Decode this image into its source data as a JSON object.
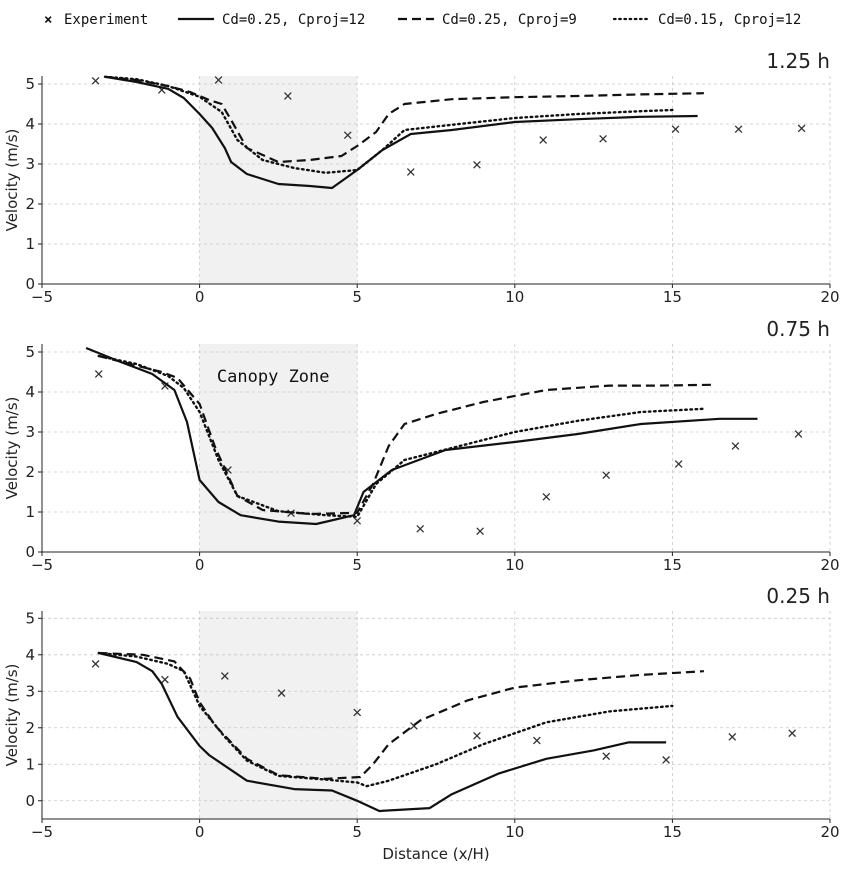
{
  "chart_data": [
    {
      "type": "line",
      "title": "1.25 h",
      "xlabel": "",
      "ylabel": "Velocity (m/s)",
      "xlim": [
        -5,
        20
      ],
      "ylim": [
        0,
        5.2
      ],
      "xticks": [
        -5,
        0,
        5,
        10,
        15,
        20
      ],
      "yticks": [
        0,
        1,
        2,
        3,
        4,
        5
      ],
      "grid": true,
      "shaded_region": {
        "x0": 0,
        "x1": 5
      },
      "series": [
        {
          "name": "Experiment",
          "style": "marker-x",
          "x": [
            -3.3,
            -1.2,
            0.6,
            2.8,
            4.7,
            6.7,
            8.8,
            10.9,
            12.8,
            15.1,
            17.1,
            19.1
          ],
          "y": [
            5.08,
            4.85,
            5.1,
            4.7,
            3.72,
            2.8,
            2.98,
            3.6,
            3.63,
            3.87,
            3.87,
            3.89
          ]
        },
        {
          "name": "Cd=0.25, Cproj=12",
          "style": "solid",
          "x": [
            -3.0,
            -2.0,
            -1.0,
            -0.5,
            0.0,
            0.4,
            0.8,
            1.0,
            1.5,
            2.5,
            3.5,
            4.2,
            5.0,
            5.8,
            6.7,
            8.0,
            10.0,
            12.0,
            14.0,
            15.8
          ],
          "y": [
            5.18,
            5.05,
            4.88,
            4.65,
            4.25,
            3.9,
            3.4,
            3.05,
            2.75,
            2.5,
            2.45,
            2.4,
            2.85,
            3.35,
            3.75,
            3.85,
            4.05,
            4.12,
            4.18,
            4.2
          ]
        },
        {
          "name": "Cd=0.25, Cproj=9",
          "style": "dashed",
          "x": [
            -3.0,
            -2.0,
            -1.0,
            -0.3,
            0.3,
            0.7,
            1.0,
            1.5,
            2.5,
            3.5,
            4.5,
            5.0,
            5.6,
            6.0,
            6.5,
            8.0,
            10.0,
            12.0,
            14.0,
            16.0
          ],
          "y": [
            5.18,
            5.1,
            4.95,
            4.8,
            4.6,
            4.5,
            4.1,
            3.4,
            3.05,
            3.1,
            3.2,
            3.45,
            3.8,
            4.25,
            4.5,
            4.62,
            4.67,
            4.7,
            4.74,
            4.77
          ]
        },
        {
          "name": "Cd=0.15, Cproj=12",
          "style": "dotted",
          "x": [
            -3.0,
            -2.0,
            -1.0,
            0.0,
            0.7,
            1.2,
            2.0,
            3.0,
            4.0,
            5.0,
            5.8,
            6.5,
            8.0,
            10.0,
            12.0,
            14.0,
            15.0
          ],
          "y": [
            5.18,
            5.12,
            4.95,
            4.68,
            4.3,
            3.6,
            3.1,
            2.9,
            2.78,
            2.85,
            3.35,
            3.85,
            3.98,
            4.15,
            4.25,
            4.32,
            4.35
          ]
        }
      ]
    },
    {
      "type": "line",
      "title": "0.75 h",
      "xlabel": "",
      "ylabel": "Velocity (m/s)",
      "xlim": [
        -5,
        20
      ],
      "ylim": [
        0,
        5.2
      ],
      "xticks": [
        -5,
        0,
        5,
        10,
        15,
        20
      ],
      "yticks": [
        0,
        1,
        2,
        3,
        4,
        5
      ],
      "grid": true,
      "shaded_region": {
        "x0": 0,
        "x1": 5
      },
      "annotation": "Canopy Zone",
      "series": [
        {
          "name": "Experiment",
          "style": "marker-x",
          "x": [
            -3.2,
            -1.1,
            0.9,
            2.9,
            5.0,
            7.0,
            8.9,
            11.0,
            12.9,
            15.2,
            17.0,
            19.0
          ],
          "y": [
            4.45,
            4.15,
            2.05,
            0.97,
            0.78,
            0.58,
            0.52,
            1.38,
            1.92,
            2.2,
            2.65,
            2.95
          ]
        },
        {
          "name": "Cd=0.25, Cproj=12",
          "style": "solid",
          "x": [
            -3.6,
            -2.5,
            -1.5,
            -0.8,
            -0.4,
            0.0,
            0.6,
            1.3,
            2.5,
            3.7,
            4.9,
            5.2,
            6.1,
            7.8,
            10.0,
            12.0,
            14.0,
            16.5,
            17.7
          ],
          "y": [
            5.1,
            4.75,
            4.45,
            4.05,
            3.25,
            1.8,
            1.25,
            0.92,
            0.76,
            0.7,
            0.92,
            1.5,
            2.05,
            2.55,
            2.75,
            2.95,
            3.2,
            3.33,
            3.33
          ]
        },
        {
          "name": "Cd=0.25, Cproj=9",
          "style": "dashed",
          "x": [
            -3.2,
            -2.2,
            -1.2,
            -0.7,
            0.0,
            0.5,
            1.2,
            2.0,
            3.5,
            5.0,
            5.5,
            6.0,
            6.5,
            7.5,
            9.0,
            11.0,
            13.0,
            14.5,
            16.3
          ],
          "y": [
            4.9,
            4.7,
            4.5,
            4.35,
            3.7,
            2.6,
            1.4,
            1.05,
            0.95,
            0.98,
            1.7,
            2.65,
            3.2,
            3.45,
            3.75,
            4.05,
            4.16,
            4.16,
            4.18
          ]
        },
        {
          "name": "Cd=0.15, Cproj=12",
          "style": "dotted",
          "x": [
            -3.2,
            -2.0,
            -1.0,
            -0.5,
            0.0,
            0.6,
            1.2,
            2.5,
            4.0,
            5.0,
            5.6,
            6.5,
            8.0,
            10.0,
            12.0,
            14.0,
            16.0
          ],
          "y": [
            4.9,
            4.7,
            4.4,
            4.1,
            3.5,
            2.3,
            1.4,
            1.02,
            0.92,
            0.88,
            1.7,
            2.3,
            2.6,
            3.0,
            3.28,
            3.5,
            3.58
          ]
        }
      ]
    },
    {
      "type": "line",
      "title": "0.25 h",
      "xlabel": "Distance (x/H)",
      "ylabel": "Velocity (m/s)",
      "xlim": [
        -5,
        20
      ],
      "ylim": [
        -0.5,
        5.2
      ],
      "xticks": [
        -5,
        0,
        5,
        10,
        15,
        20
      ],
      "yticks": [
        0,
        1,
        2,
        3,
        4,
        5
      ],
      "grid": true,
      "shaded_region": {
        "x0": 0,
        "x1": 5
      },
      "series": [
        {
          "name": "Experiment",
          "style": "marker-x",
          "x": [
            -3.3,
            -1.1,
            0.8,
            2.6,
            5.0,
            6.8,
            8.8,
            10.7,
            12.9,
            14.8,
            16.9,
            18.8
          ],
          "y": [
            3.75,
            3.32,
            3.42,
            2.95,
            2.42,
            2.05,
            1.78,
            1.65,
            1.22,
            1.12,
            1.75,
            1.85
          ]
        },
        {
          "name": "Cd=0.25, Cproj=12",
          "style": "solid",
          "x": [
            -3.2,
            -2.0,
            -1.5,
            -1.2,
            -0.7,
            0.0,
            0.3,
            1.5,
            3.0,
            4.2,
            5.0,
            5.7,
            7.3,
            8.0,
            9.5,
            11.0,
            12.5,
            13.6,
            14.8
          ],
          "y": [
            4.05,
            3.8,
            3.55,
            3.2,
            2.3,
            1.5,
            1.25,
            0.55,
            0.32,
            0.28,
            0.0,
            -0.28,
            -0.2,
            0.18,
            0.75,
            1.15,
            1.38,
            1.6,
            1.6
          ]
        },
        {
          "name": "Cd=0.25, Cproj=9",
          "style": "dashed",
          "x": [
            -3.2,
            -1.8,
            -0.8,
            -0.3,
            0.0,
            0.5,
            1.5,
            2.5,
            4.0,
            5.1,
            5.5,
            6.0,
            7.0,
            8.5,
            10.0,
            12.0,
            14.0,
            16.0
          ],
          "y": [
            4.05,
            4.0,
            3.82,
            3.35,
            2.7,
            2.05,
            1.15,
            0.7,
            0.6,
            0.65,
            1.0,
            1.55,
            2.2,
            2.75,
            3.1,
            3.3,
            3.45,
            3.55
          ]
        },
        {
          "name": "Cd=0.15, Cproj=12",
          "style": "dotted",
          "x": [
            -3.2,
            -2.0,
            -1.0,
            -0.5,
            0.0,
            0.8,
            1.5,
            2.5,
            4.0,
            5.0,
            5.3,
            6.0,
            7.5,
            9.0,
            11.0,
            13.0,
            15.0
          ],
          "y": [
            4.05,
            3.95,
            3.75,
            3.55,
            2.6,
            1.75,
            1.1,
            0.68,
            0.58,
            0.5,
            0.4,
            0.55,
            1.0,
            1.55,
            2.15,
            2.45,
            2.6
          ]
        }
      ]
    }
  ],
  "legend": [
    {
      "label": "Experiment",
      "style": "marker-x"
    },
    {
      "label": "Cd=0.25, Cproj=12",
      "style": "solid"
    },
    {
      "label": "Cd=0.25, Cproj=9",
      "style": "dashed"
    },
    {
      "label": "Cd=0.15, Cproj=12",
      "style": "dotted"
    }
  ],
  "colors": {
    "line": "#111111",
    "marker": "#333333",
    "grid": "#c8c8c8",
    "shade": "#f1f1f1",
    "axis": "#222222"
  }
}
